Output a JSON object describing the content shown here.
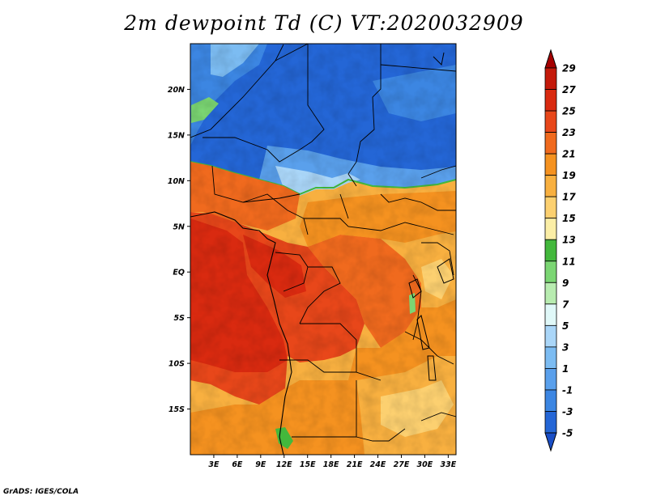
{
  "title": "2m dewpoint Td (C) VT:2020032909",
  "footer": "GrADS: IGES/COLA",
  "map": {
    "variable": "2m dewpoint",
    "units": "C",
    "valid_time": "2020032909",
    "lon_range": [
      0,
      34
    ],
    "lat_range": [
      -20,
      25
    ],
    "y_ticks": [
      {
        "lat": 20,
        "label": "20N"
      },
      {
        "lat": 15,
        "label": "15N"
      },
      {
        "lat": 10,
        "label": "10N"
      },
      {
        "lat": 5,
        "label": "5N"
      },
      {
        "lat": 0,
        "label": "EQ"
      },
      {
        "lat": -5,
        "label": "5S"
      },
      {
        "lat": -10,
        "label": "10S"
      },
      {
        "lat": -15,
        "label": "15S"
      }
    ],
    "x_ticks": [
      {
        "lon": 3,
        "label": "3E"
      },
      {
        "lon": 6,
        "label": "6E"
      },
      {
        "lon": 9,
        "label": "9E"
      },
      {
        "lon": 12,
        "label": "12E"
      },
      {
        "lon": 15,
        "label": "15E"
      },
      {
        "lon": 18,
        "label": "18E"
      },
      {
        "lon": 21,
        "label": "21E"
      },
      {
        "lon": 24,
        "label": "24E"
      },
      {
        "lon": 27,
        "label": "27E"
      },
      {
        "lon": 30,
        "label": "30E"
      },
      {
        "lon": 33,
        "label": "33E"
      }
    ]
  },
  "colorbar": {
    "levels": [
      "29",
      "27",
      "25",
      "23",
      "21",
      "19",
      "17",
      "15",
      "13",
      "11",
      "9",
      "7",
      "5",
      "3",
      "1",
      "-1",
      "-3",
      "-5"
    ],
    "colors": [
      "#a50000",
      "#c41a0b",
      "#d92a10",
      "#e8471a",
      "#f06a1e",
      "#f59220",
      "#f8b040",
      "#fcd070",
      "#fbeea6",
      "#43b83c",
      "#7bd673",
      "#b8ecb0",
      "#e0f8f8",
      "#aad6f8",
      "#7cbcf2",
      "#5aa0ec",
      "#3c86e2",
      "#2466d6",
      "#1a4ec6"
    ]
  }
}
